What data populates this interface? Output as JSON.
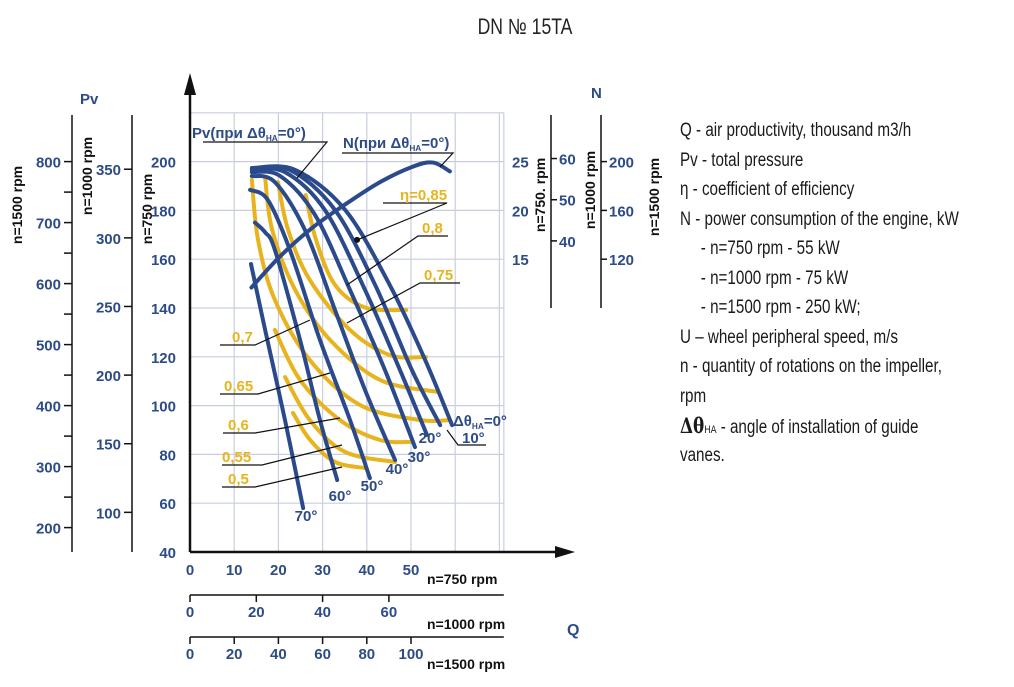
{
  "title": "DN № 15TA",
  "legend": {
    "lines": [
      "Q - air productivity, thousand m3/h",
      "Pv - total pressure",
      "η - coefficient of efficiency",
      "N - power consumption of the engine, kW",
      "- n=750 rpm - 55 kW",
      "- n=1000 rpm - 75 kW",
      "- n=1500 rpm - 250 kW;",
      "U – wheel peripheral speed, m/s",
      "n - quantity of rotations on the impeller,",
      "rpm"
    ],
    "vane_symbol": "Δθ",
    "vane_sub": "HA",
    "vane_text": " - angle of installation of guide",
    "vane_text_2": "vanes."
  },
  "colors": {
    "vane_curves": "#2a4a8c",
    "efficiency_curves": "#e8b41e",
    "labels_blue": "#2d4b87",
    "axis": "#111111",
    "grid": "#c9cde0"
  },
  "chart_data": {
    "type": "line",
    "grid": true,
    "x_axis": {
      "label": "Q",
      "range": [
        0,
        71
      ],
      "scales": [
        {
          "speed": 750,
          "caption": "n=750 rpm",
          "ticks": [
            0,
            10,
            20,
            30,
            40,
            50
          ]
        },
        {
          "speed": 1000,
          "caption": "n=1000 rpm",
          "ticks": [
            0,
            20,
            40,
            60
          ]
        },
        {
          "speed": 1500,
          "caption": "n=1500 rpm",
          "ticks": [
            0,
            20,
            40,
            60,
            80,
            100
          ]
        }
      ]
    },
    "y_axis": {
      "label": "Pv",
      "range": [
        40,
        220
      ],
      "scales": [
        {
          "speed": 750,
          "caption": "n=750 rpm",
          "ticks": [
            40,
            60,
            80,
            100,
            120,
            140,
            160,
            180,
            200
          ]
        },
        {
          "speed": 1000,
          "caption": "n=1000 rpm",
          "ticks": [
            100,
            150,
            200,
            250,
            300,
            350
          ]
        },
        {
          "speed": 1500,
          "caption": "n=1500 rpm",
          "ticks": [
            200,
            300,
            400,
            500,
            600,
            700,
            800
          ]
        }
      ]
    },
    "y2_axis": {
      "label": "N",
      "scales": [
        {
          "speed": 750,
          "caption": "n=750. rpm",
          "ticks": [
            15,
            20,
            25
          ]
        },
        {
          "speed": 1000,
          "caption": "n=1000 rpm",
          "ticks": [
            40,
            50,
            60
          ]
        },
        {
          "speed": 1500,
          "caption": "n=1500 rpm",
          "ticks": [
            120,
            160,
            200
          ]
        }
      ]
    },
    "pressure_curves_label": {
      "main": "Pv(при Δθ",
      "sub": "НА",
      "tail": "=0°)"
    },
    "vane_angle_label": {
      "main": "Δθ",
      "sub": "НА",
      "tail": "=0°"
    },
    "pressure_curves": [
      {
        "name": "0°",
        "points": [
          [
            14,
            197.4
          ],
          [
            23.8,
            196.6
          ],
          [
            35.1,
            180.2
          ],
          [
            45.2,
            149.4
          ],
          [
            53.2,
            118.7
          ],
          [
            59.3,
            92
          ]
        ]
      },
      {
        "name": "10°",
        "points": [
          [
            14,
            197
          ],
          [
            22.6,
            196.6
          ],
          [
            32.8,
            180.2
          ],
          [
            41.9,
            149.4
          ],
          [
            50.2,
            114.6
          ],
          [
            56.6,
            92
          ]
        ]
      },
      {
        "name": "20°",
        "points": [
          [
            14,
            196.6
          ],
          [
            21.5,
            195.7
          ],
          [
            30.5,
            180.2
          ],
          [
            39.6,
            147.4
          ],
          [
            47.5,
            114.6
          ],
          [
            53.6,
            88
          ]
        ]
      },
      {
        "name": "30°",
        "points": [
          [
            14,
            195.7
          ],
          [
            20.4,
            194.1
          ],
          [
            28.3,
            178.1
          ],
          [
            36.2,
            147.4
          ],
          [
            44.1,
            114.6
          ],
          [
            50.9,
            83
          ]
        ]
      },
      {
        "name": "40°",
        "points": [
          [
            14,
            194.1
          ],
          [
            19.2,
            191.6
          ],
          [
            26,
            172
          ],
          [
            32.8,
            139.2
          ],
          [
            39.6,
            106.4
          ],
          [
            46.4,
            77.7
          ]
        ]
      },
      {
        "name": "50°",
        "points": [
          [
            13.6,
            188.4
          ],
          [
            17.6,
            184.3
          ],
          [
            22.6,
            163.8
          ],
          [
            29.4,
            126.9
          ],
          [
            36.2,
            94.1
          ],
          [
            40.7,
            70.3
          ]
        ]
      },
      {
        "name": "60°",
        "points": [
          [
            14.7,
            175
          ],
          [
            17,
            171
          ],
          [
            19.2,
            163.8
          ],
          [
            24.9,
            126.9
          ],
          [
            29.4,
            94.1
          ],
          [
            33.3,
            69.5
          ]
        ]
      },
      {
        "name": "70°",
        "points": [
          [
            13.8,
            158
          ],
          [
            17,
            131
          ],
          [
            21.5,
            94
          ],
          [
            25.6,
            58
          ]
        ]
      }
    ],
    "efficiency_curves": [
      {
        "name": "0,8",
        "points": [
          [
            26.2,
            186.3
          ],
          [
            28.5,
            168
          ],
          [
            32.8,
            149.5
          ],
          [
            39.6,
            140.2
          ],
          [
            48.9,
            139.2
          ]
        ]
      },
      {
        "name": "0,75",
        "points": [
          [
            19.9,
            191.6
          ],
          [
            22.2,
            172
          ],
          [
            27.1,
            151.5
          ],
          [
            36.2,
            131
          ],
          [
            45.2,
            120.7
          ],
          [
            53.4,
            119.9
          ]
        ]
      },
      {
        "name": "0,7",
        "points": [
          [
            17,
            193.3
          ],
          [
            18.6,
            172
          ],
          [
            23.8,
            147.4
          ],
          [
            31.7,
            126.9
          ],
          [
            43,
            110.5
          ],
          [
            56.1,
            105.6
          ]
        ]
      },
      {
        "name": "0,65",
        "points": [
          [
            14,
            192.5
          ],
          [
            15.4,
            167.9
          ],
          [
            19.2,
            143.3
          ],
          [
            27.1,
            118.7
          ],
          [
            38.5,
            100.2
          ],
          [
            52,
            94.1
          ],
          [
            58.8,
            94.1
          ]
        ]
      },
      {
        "name": "0,6",
        "points": [
          [
            19.2,
            131
          ],
          [
            24.9,
            110.5
          ],
          [
            33.9,
            94.1
          ],
          [
            43,
            85.9
          ],
          [
            50.5,
            85.1
          ]
        ]
      },
      {
        "name": "0,55",
        "points": [
          [
            21.5,
            111.7
          ],
          [
            27.1,
            94.1
          ],
          [
            35.1,
            81
          ],
          [
            46.4,
            76.9
          ]
        ]
      },
      {
        "name": "0,5",
        "points": [
          [
            23.3,
            97
          ],
          [
            27.1,
            86.1
          ],
          [
            32.8,
            76.9
          ],
          [
            39.6,
            74.4
          ]
        ]
      }
    ],
    "efficiency_peak": {
      "name": "η=0,85",
      "point": [
        37.8,
        167.9
      ]
    },
    "power_curve": {
      "label": {
        "main": "N(при Δθ",
        "sub": "НА",
        "tail": "=0°)"
      },
      "points": [
        [
          13.9,
          12.1
        ],
        [
          20.4,
          15.3
        ],
        [
          27.9,
          18.3
        ],
        [
          35.4,
          20.7
        ],
        [
          43,
          22.9
        ],
        [
          50.5,
          24.5
        ],
        [
          55,
          24.9
        ],
        [
          58.8,
          24
        ]
      ]
    }
  }
}
